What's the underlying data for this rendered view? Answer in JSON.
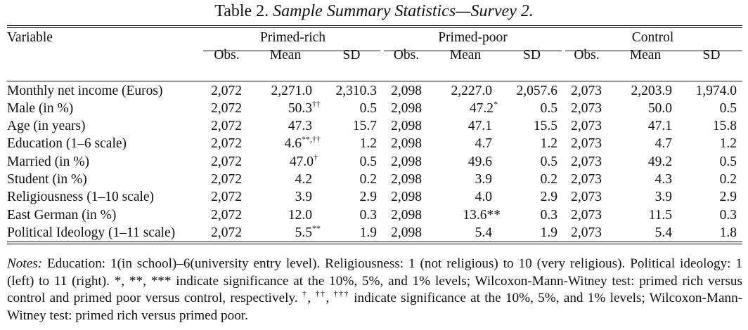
{
  "title": {
    "prefix": "Table 2.",
    "text": "Sample Summary Statistics—Survey 2."
  },
  "columns": {
    "variable": "Variable",
    "groups": [
      "Primed-rich",
      "Primed-poor",
      "Control"
    ],
    "subheaders": [
      "Obs.",
      "Mean",
      "SD"
    ]
  },
  "rows": [
    {
      "label": "Monthly net income (Euros)",
      "cells": [
        {
          "obs": "2,072",
          "mean": "2,271.0",
          "sig": "",
          "sd": "2,310.3"
        },
        {
          "obs": "2,098",
          "mean": "2,227.0",
          "sig": "",
          "sd": "2,057.6"
        },
        {
          "obs": "2,073",
          "mean": "2,203.9",
          "sig": "",
          "sd": "1,974.0"
        }
      ]
    },
    {
      "label": "Male (in %)",
      "cells": [
        {
          "obs": "2,072",
          "mean": "50.3",
          "sig": "††",
          "sd": "0.5"
        },
        {
          "obs": "2,098",
          "mean": "47.2",
          "sig": "*",
          "sd": "0.5"
        },
        {
          "obs": "2,073",
          "mean": "50.0",
          "sig": "",
          "sd": "0.5"
        }
      ]
    },
    {
      "label": "Age (in years)",
      "cells": [
        {
          "obs": "2,072",
          "mean": "47.3",
          "sig": "",
          "sd": "15.7"
        },
        {
          "obs": "2,098",
          "mean": "47.1",
          "sig": "",
          "sd": "15.5"
        },
        {
          "obs": "2,073",
          "mean": "47.1",
          "sig": "",
          "sd": "15.8"
        }
      ]
    },
    {
      "label": "Education (1–6 scale)",
      "cells": [
        {
          "obs": "2,072",
          "mean": "4.6",
          "sig": "**,††",
          "sd": "1.2"
        },
        {
          "obs": "2,098",
          "mean": "4.7",
          "sig": "",
          "sd": "1.2"
        },
        {
          "obs": "2,073",
          "mean": "4.7",
          "sig": "",
          "sd": "1.2"
        }
      ]
    },
    {
      "label": "Married (in %)",
      "cells": [
        {
          "obs": "2,072",
          "mean": "47.0",
          "sig": "†",
          "sd": "0.5"
        },
        {
          "obs": "2,098",
          "mean": "49.6",
          "sig": "",
          "sd": "0.5"
        },
        {
          "obs": "2,073",
          "mean": "49.2",
          "sig": "",
          "sd": "0.5"
        }
      ]
    },
    {
      "label": "Student (in %)",
      "cells": [
        {
          "obs": "2,072",
          "mean": "4.2",
          "sig": "",
          "sd": "0.2"
        },
        {
          "obs": "2,098",
          "mean": "3.9",
          "sig": "",
          "sd": "0.2"
        },
        {
          "obs": "2,073",
          "mean": "4.3",
          "sig": "",
          "sd": "0.2"
        }
      ]
    },
    {
      "label": "Religiousness (1–10 scale)",
      "cells": [
        {
          "obs": "2,072",
          "mean": "3.9",
          "sig": "",
          "sd": "2.9"
        },
        {
          "obs": "2,098",
          "mean": "4.0",
          "sig": "",
          "sd": "2.9"
        },
        {
          "obs": "2,073",
          "mean": "3.9",
          "sig": "",
          "sd": "2.9"
        }
      ]
    },
    {
      "label": "East German (in %)",
      "cells": [
        {
          "obs": "2,072",
          "mean": "12.0",
          "sig": "",
          "sd": "0.3"
        },
        {
          "obs": "2,098",
          "mean": "13.6**",
          "sig": "",
          "sd": "0.3"
        },
        {
          "obs": "2,073",
          "mean": "11.5",
          "sig": "",
          "sd": "0.3"
        }
      ]
    },
    {
      "label": "Political Ideology (1–11 scale)",
      "cells": [
        {
          "obs": "2,072",
          "mean": "5.5",
          "sig": "**",
          "sd": "1.9"
        },
        {
          "obs": "2,098",
          "mean": "5.4",
          "sig": "",
          "sd": "1.9"
        },
        {
          "obs": "2,073",
          "mean": "5.4",
          "sig": "",
          "sd": "1.8"
        }
      ]
    }
  ],
  "notes": {
    "label": "Notes:",
    "text_1": " Education: 1(in school)–6(university entry level). Religiousness: 1 (not religious) to 10 (very religious). Political ideology: 1 (left) to 11 (right). *, **, *** indicate significance at the 10%, 5%, and 1% levels; Wilcoxon-Mann-Witney test: primed rich versus control and primed poor versus control, respectively. ",
    "sup_1": "†",
    "sep_1": ", ",
    "sup_2": "††",
    "sep_2": ", ",
    "sup_3": "†††",
    "text_2": " indicate significance at the 10%, 5%, and 1% levels; Wilcoxon-Mann-Witney test: primed rich versus primed poor."
  }
}
